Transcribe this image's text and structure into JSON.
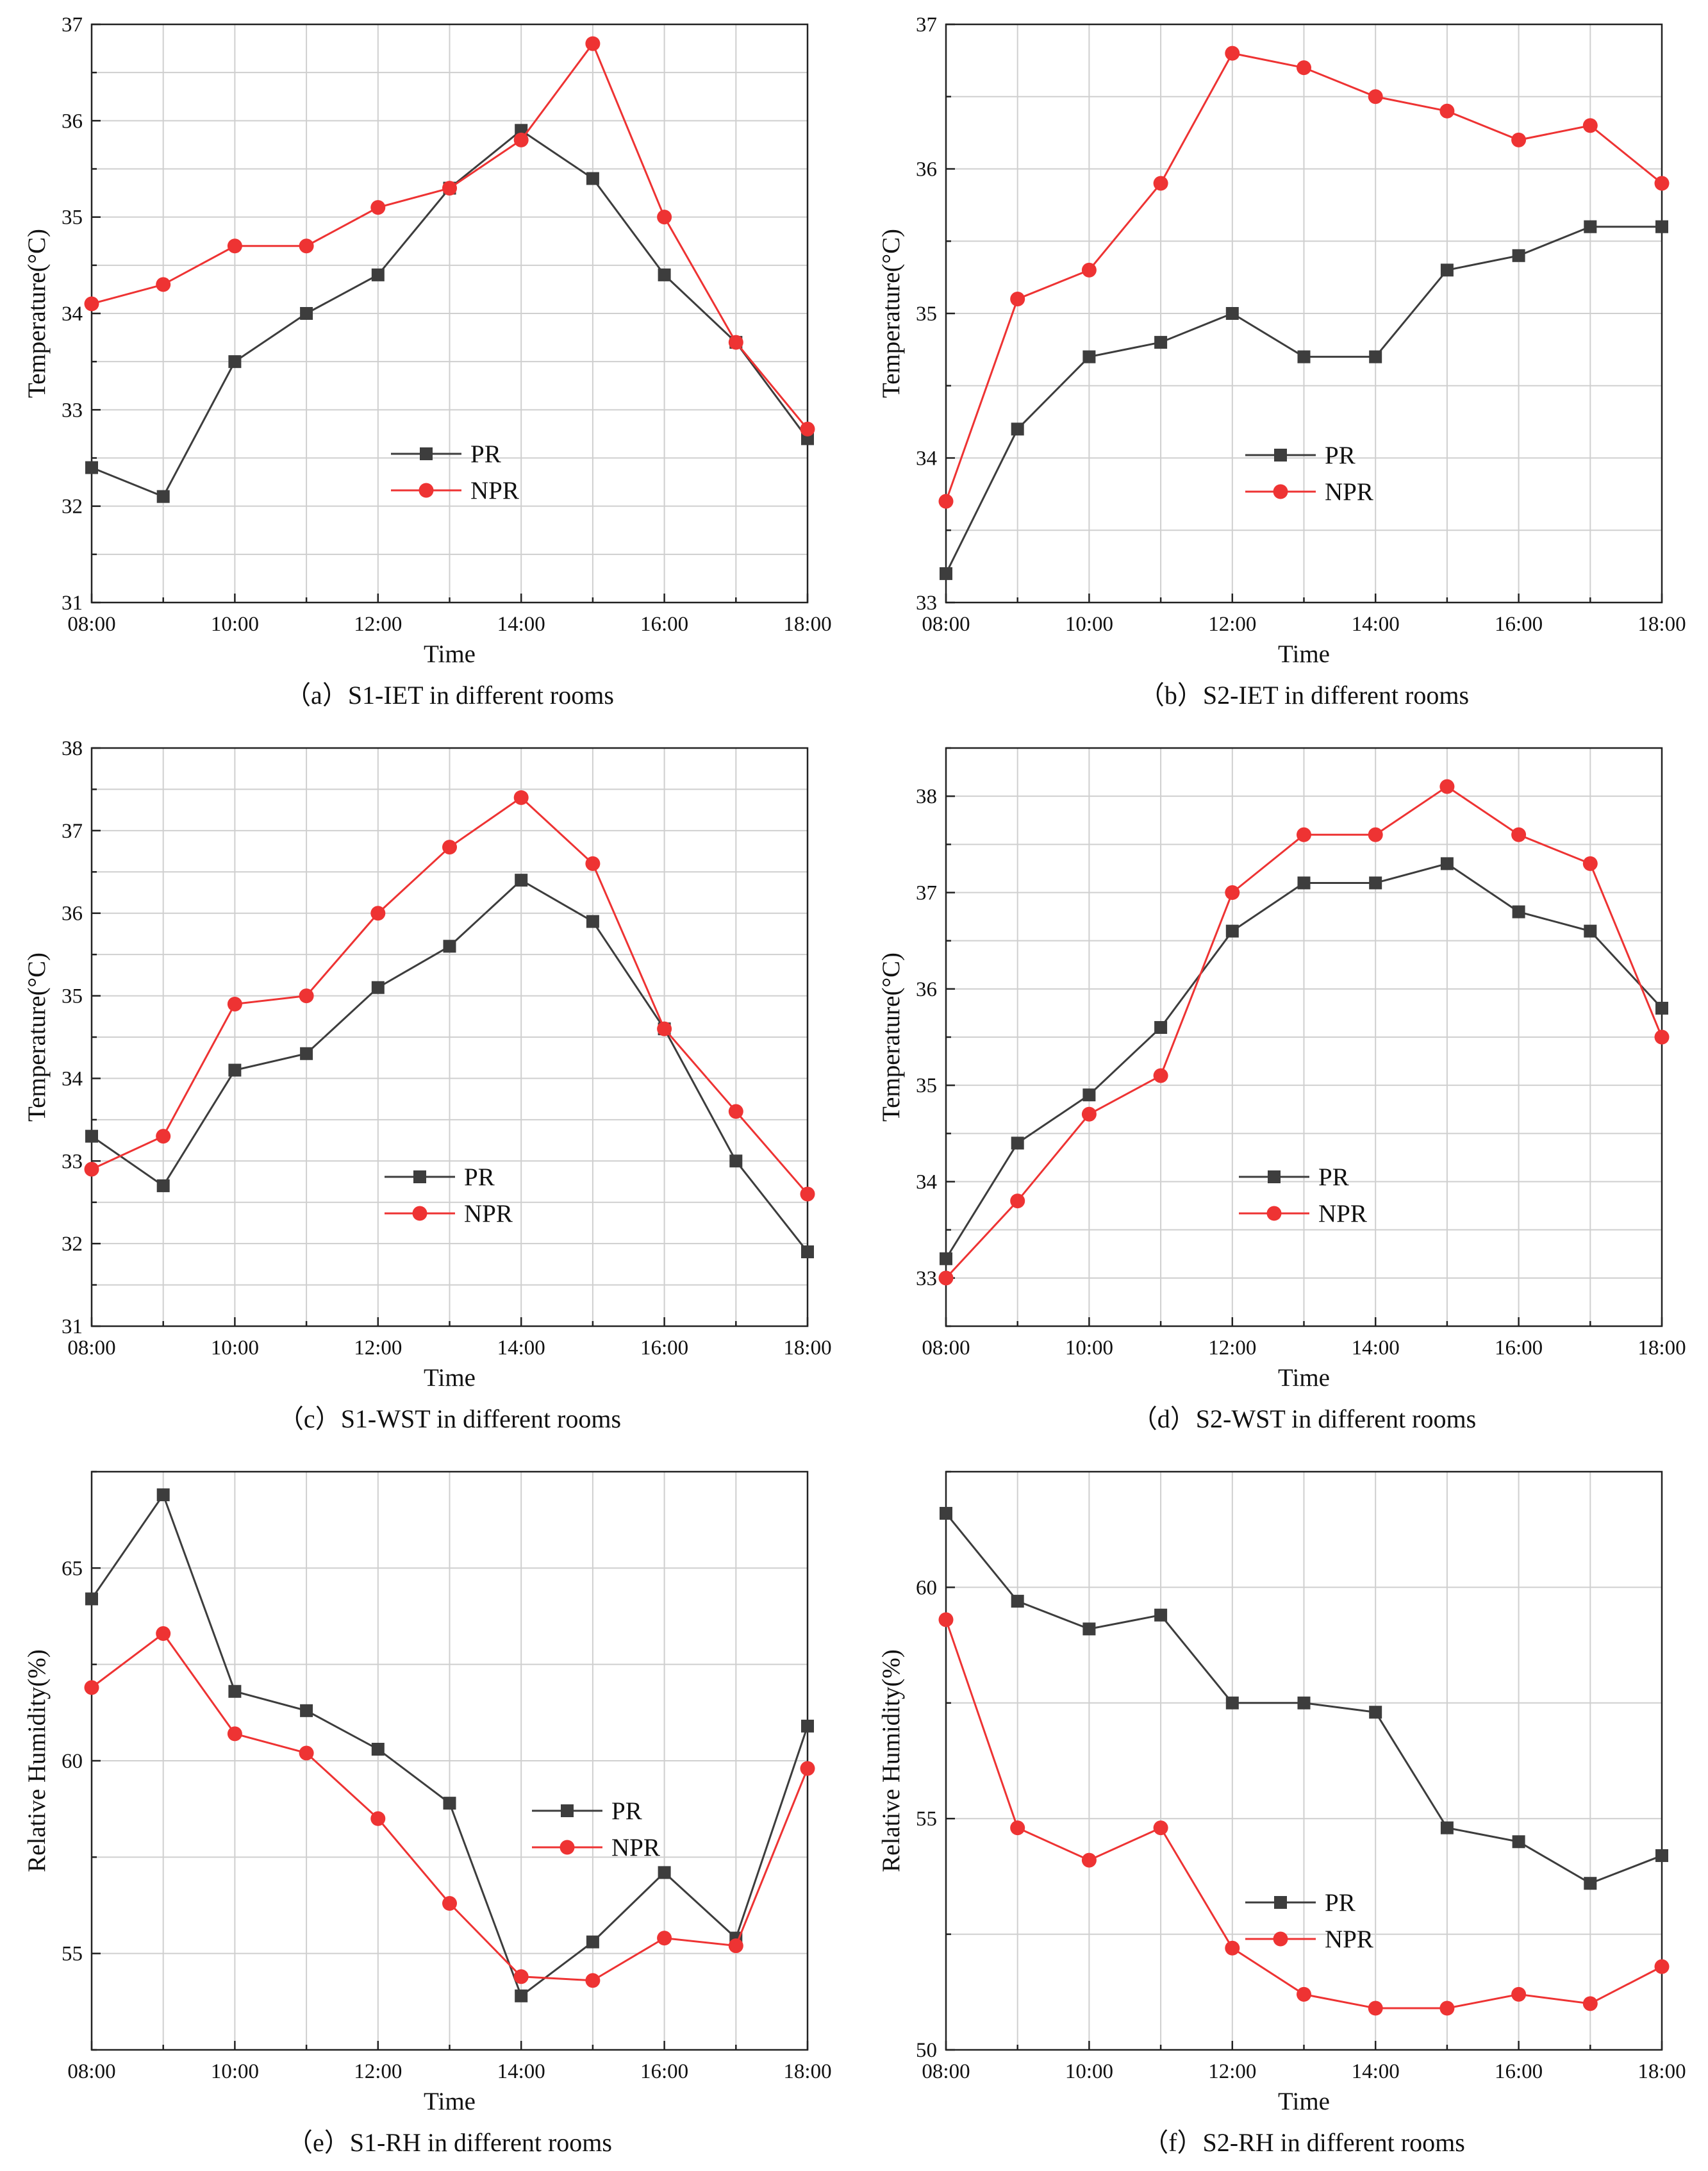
{
  "chart_data": [
    {
      "type": "line",
      "caption": "（a）S1-IET in different rooms",
      "xlabel": "Time",
      "ylabel": "Temperature(°C)",
      "x_ticks": [
        "08:00",
        "10:00",
        "12:00",
        "14:00",
        "16:00",
        "18:00"
      ],
      "y_ticks": [
        "31",
        "32",
        "33",
        "34",
        "35",
        "36",
        "37"
      ],
      "xlim": [
        8,
        18
      ],
      "ylim": [
        31,
        37
      ],
      "grid": true,
      "legend": "center",
      "series": [
        {
          "name": "PR",
          "color": "#3d3d3d",
          "marker": "square",
          "x": [
            8,
            9,
            10,
            11,
            12,
            13,
            14,
            15,
            16,
            17,
            18
          ],
          "values": [
            32.4,
            32.1,
            33.5,
            34.0,
            34.4,
            35.3,
            35.9,
            35.4,
            34.4,
            33.7,
            32.7
          ]
        },
        {
          "name": "NPR",
          "color": "#ee3333",
          "marker": "circle",
          "x": [
            8,
            9,
            10,
            11,
            12,
            13,
            14,
            15,
            16,
            17,
            18
          ],
          "values": [
            34.1,
            34.3,
            34.7,
            34.7,
            35.1,
            35.3,
            35.8,
            36.8,
            35.0,
            33.7,
            32.8
          ]
        }
      ]
    },
    {
      "type": "line",
      "caption": "（b）S2-IET in different rooms",
      "xlabel": "Time",
      "ylabel": "Temperature(°C)",
      "x_ticks": [
        "08:00",
        "10:00",
        "12:00",
        "14:00",
        "16:00",
        "18:00"
      ],
      "y_ticks": [
        "33",
        "34",
        "35",
        "36",
        "37"
      ],
      "xlim": [
        8,
        18
      ],
      "ylim": [
        33,
        37
      ],
      "grid": true,
      "legend": "center-left",
      "series": [
        {
          "name": "PR",
          "color": "#3d3d3d",
          "marker": "square",
          "x": [
            8,
            9,
            10,
            11,
            12,
            13,
            14,
            15,
            16,
            17,
            18
          ],
          "values": [
            33.2,
            34.2,
            34.7,
            34.8,
            35.0,
            34.7,
            34.7,
            35.3,
            35.4,
            35.6,
            35.6
          ]
        },
        {
          "name": "NPR",
          "color": "#ee3333",
          "marker": "circle",
          "x": [
            8,
            9,
            10,
            11,
            12,
            13,
            14,
            15,
            16,
            17,
            18
          ],
          "values": [
            33.7,
            35.1,
            35.3,
            35.9,
            36.8,
            36.7,
            36.5,
            36.4,
            36.2,
            36.3,
            35.9
          ]
        }
      ]
    },
    {
      "type": "line",
      "caption": "（c）S1-WST in different rooms",
      "xlabel": "Time",
      "ylabel": "Temperature(°C)",
      "x_ticks": [
        "08:00",
        "10:00",
        "12:00",
        "14:00",
        "16:00",
        "18:00"
      ],
      "y_ticks": [
        "31",
        "32",
        "33",
        "34",
        "35",
        "36",
        "37",
        "38"
      ],
      "xlim": [
        8,
        18
      ],
      "ylim": [
        31,
        38
      ],
      "grid": true,
      "legend": "bottom-center",
      "series": [
        {
          "name": "PR",
          "color": "#3d3d3d",
          "marker": "square",
          "x": [
            8,
            9,
            10,
            11,
            12,
            13,
            14,
            15,
            16,
            17,
            18
          ],
          "values": [
            33.3,
            32.7,
            34.1,
            34.3,
            35.1,
            35.6,
            36.4,
            35.9,
            34.6,
            33.0,
            31.9
          ]
        },
        {
          "name": "NPR",
          "color": "#ee3333",
          "marker": "circle",
          "x": [
            8,
            9,
            10,
            11,
            12,
            13,
            14,
            15,
            16,
            17,
            18
          ],
          "values": [
            32.9,
            33.3,
            34.9,
            35.0,
            36.0,
            36.8,
            37.4,
            36.6,
            34.6,
            33.6,
            32.6
          ]
        }
      ]
    },
    {
      "type": "line",
      "caption": "（d）S2-WST in different rooms",
      "xlabel": "Time",
      "ylabel": "Temperature(°C)",
      "x_ticks": [
        "08:00",
        "10:00",
        "12:00",
        "14:00",
        "16:00",
        "18:00"
      ],
      "y_ticks": [
        "33",
        "34",
        "35",
        "36",
        "37",
        "38"
      ],
      "xlim": [
        8,
        18
      ],
      "ylim": [
        32.5,
        38.5
      ],
      "grid": true,
      "legend": "bottom-center",
      "series": [
        {
          "name": "PR",
          "color": "#3d3d3d",
          "marker": "square",
          "x": [
            8,
            9,
            10,
            11,
            12,
            13,
            14,
            15,
            16,
            17,
            18
          ],
          "values": [
            33.2,
            34.4,
            34.9,
            35.6,
            36.6,
            37.1,
            37.1,
            37.3,
            36.8,
            36.6,
            35.8
          ]
        },
        {
          "name": "NPR",
          "color": "#ee3333",
          "marker": "circle",
          "x": [
            8,
            9,
            10,
            11,
            12,
            13,
            14,
            15,
            16,
            17,
            18
          ],
          "values": [
            33.0,
            33.8,
            34.7,
            35.1,
            37.0,
            37.6,
            37.6,
            38.1,
            37.6,
            37.3,
            35.5
          ]
        }
      ]
    },
    {
      "type": "line",
      "caption": "（e）S1-RH in different rooms",
      "xlabel": "Time",
      "ylabel": "Relative Humidity(%)",
      "x_ticks": [
        "08:00",
        "10:00",
        "12:00",
        "14:00",
        "16:00",
        "18:00"
      ],
      "y_ticks": [
        "55",
        "60",
        "65"
      ],
      "xlim": [
        8,
        18
      ],
      "ylim": [
        52.5,
        67.5
      ],
      "grid": true,
      "legend": "center-right",
      "series": [
        {
          "name": "PR",
          "color": "#3d3d3d",
          "marker": "square",
          "x": [
            8,
            9,
            10,
            11,
            12,
            13,
            14,
            15,
            16,
            17,
            18
          ],
          "values": [
            64.2,
            66.9,
            61.8,
            61.3,
            60.3,
            58.9,
            53.9,
            55.3,
            57.1,
            55.4,
            60.9
          ]
        },
        {
          "name": "NPR",
          "color": "#ee3333",
          "marker": "circle",
          "x": [
            8,
            9,
            10,
            11,
            12,
            13,
            14,
            15,
            16,
            17,
            18
          ],
          "values": [
            61.9,
            63.3,
            60.7,
            60.2,
            58.5,
            56.3,
            54.4,
            54.3,
            55.4,
            55.2,
            59.8
          ]
        }
      ]
    },
    {
      "type": "line",
      "caption": "（f）S2-RH in different rooms",
      "xlabel": "Time",
      "ylabel": "Relative Humidity(%)",
      "x_ticks": [
        "08:00",
        "10:00",
        "12:00",
        "14:00",
        "16:00",
        "18:00"
      ],
      "y_ticks": [
        "50",
        "55",
        "60"
      ],
      "xlim": [
        8,
        18
      ],
      "ylim": [
        50,
        62.5
      ],
      "grid": true,
      "legend": "center-left",
      "series": [
        {
          "name": "PR",
          "color": "#3d3d3d",
          "marker": "square",
          "x": [
            8,
            9,
            10,
            11,
            12,
            13,
            14,
            15,
            16,
            17,
            18
          ],
          "values": [
            61.6,
            59.7,
            59.1,
            59.4,
            57.5,
            57.5,
            57.3,
            54.8,
            54.5,
            53.6,
            54.2
          ]
        },
        {
          "name": "NPR",
          "color": "#ee3333",
          "marker": "circle",
          "x": [
            8,
            9,
            10,
            11,
            12,
            13,
            14,
            15,
            16,
            17,
            18
          ],
          "values": [
            59.3,
            54.8,
            54.1,
            54.8,
            52.2,
            51.2,
            50.9,
            50.9,
            51.2,
            51.0,
            51.8
          ]
        }
      ]
    }
  ]
}
